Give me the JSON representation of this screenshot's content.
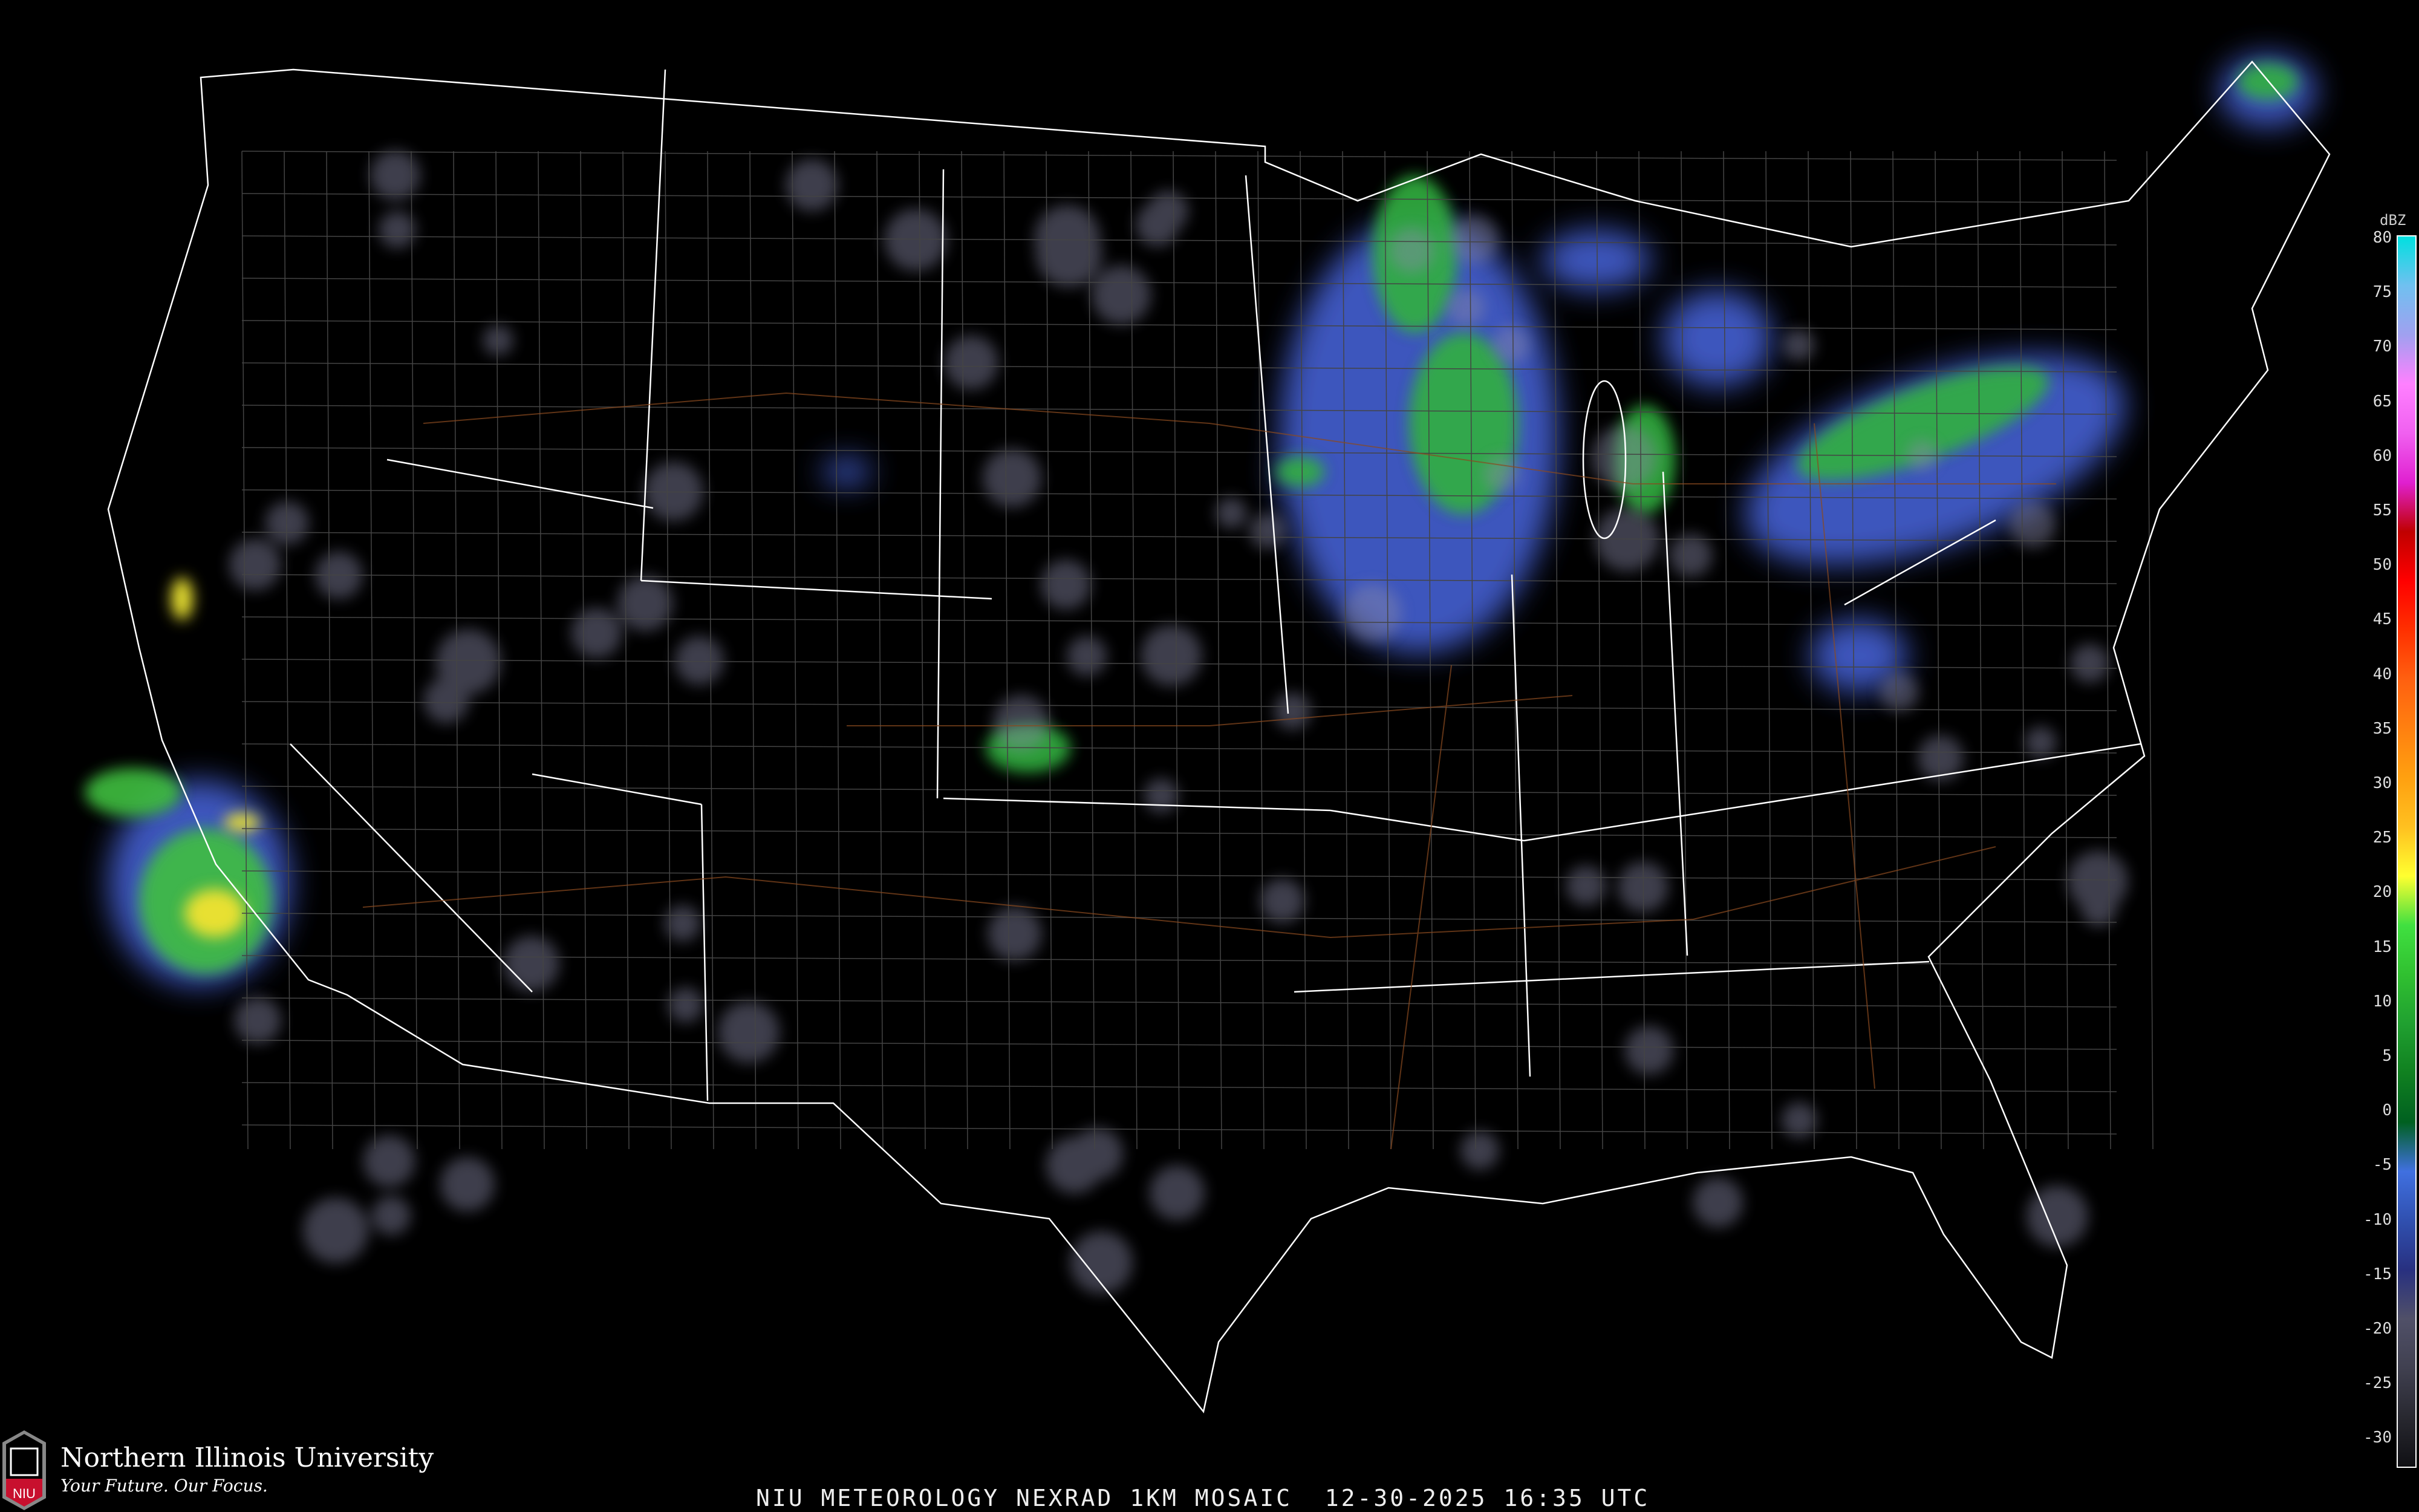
{
  "caption": "NIU METEOROLOGY NEXRAD 1KM MOSAIC  12-30-2025 16:35 UTC",
  "branding": {
    "university": "Northern Illinois University",
    "tagline": "Your Future. Our Focus.",
    "logo_text": "NIU",
    "logo_color": "#c8102e"
  },
  "legend": {
    "unit": "dBZ",
    "labels": [
      "80",
      "75",
      "70",
      "65",
      "60",
      "55",
      "50",
      "45",
      "40",
      "35",
      "30",
      "25",
      "20",
      "15",
      "10",
      "5",
      "0",
      "-5",
      "-10",
      "-15",
      "-20",
      "-25",
      "-30"
    ],
    "colors": [
      "#00e0e0",
      "#70c0f0",
      "#a0a0f0",
      "#ff80ff",
      "#f060f0",
      "#e020d0",
      "#c00000",
      "#ff0000",
      "#ff3000",
      "#ff6010",
      "#ff8010",
      "#ffa010",
      "#ffc020",
      "#ffff30",
      "#40e040",
      "#30c030",
      "#20a030",
      "#108020",
      "#006020",
      "#4070e0",
      "#3050b0",
      "#283080",
      "#505068",
      "#404050",
      "#282830",
      "#101014"
    ]
  },
  "map_colors": {
    "state_lines": "#ffffff",
    "county_lines": "#555555",
    "highways": "#8a4a20"
  }
}
